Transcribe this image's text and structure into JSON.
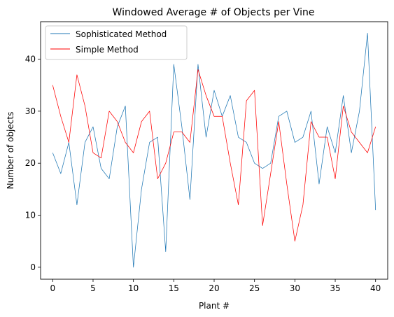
{
  "chart_data": {
    "type": "line",
    "title": "Windowed Average # of Objects per Vine",
    "xlabel": "Plant #",
    "ylabel": "Number of objects",
    "xlim": [
      -1.5,
      41.5
    ],
    "ylim": [
      -2.3,
      47.2
    ],
    "xticks": [
      0,
      5,
      10,
      15,
      20,
      25,
      30,
      35,
      40
    ],
    "yticks": [
      0,
      10,
      20,
      30,
      40
    ],
    "grid": false,
    "legend_position": "top-left",
    "x": [
      0,
      1,
      2,
      3,
      4,
      5,
      6,
      7,
      8,
      9,
      10,
      11,
      12,
      13,
      14,
      15,
      16,
      17,
      18,
      19,
      20,
      21,
      22,
      23,
      24,
      25,
      26,
      27,
      28,
      29,
      30,
      31,
      32,
      33,
      34,
      35,
      36,
      37,
      38,
      39,
      40
    ],
    "series": [
      {
        "name": "Sophisticated Method",
        "color": "#1f77b4",
        "values": [
          22,
          18,
          24,
          12,
          24,
          27,
          19,
          17,
          27,
          31,
          0,
          15,
          24,
          25,
          3,
          39,
          27,
          13,
          39,
          25,
          34,
          29,
          33,
          25,
          24,
          20,
          19,
          20,
          29,
          30,
          24,
          25,
          30,
          16,
          27,
          22,
          33,
          22,
          30,
          45,
          11
        ]
      },
      {
        "name": "Simple Method",
        "color": "#ff0000",
        "values": [
          35,
          29,
          24,
          37,
          31,
          22,
          21,
          30,
          28,
          24,
          22,
          28,
          30,
          17,
          20,
          26,
          26,
          24,
          38,
          33,
          29,
          29,
          20,
          12,
          32,
          34,
          8,
          18,
          28,
          16,
          5,
          12,
          28,
          25,
          25,
          17,
          31,
          26,
          24,
          22,
          27
        ]
      }
    ]
  }
}
